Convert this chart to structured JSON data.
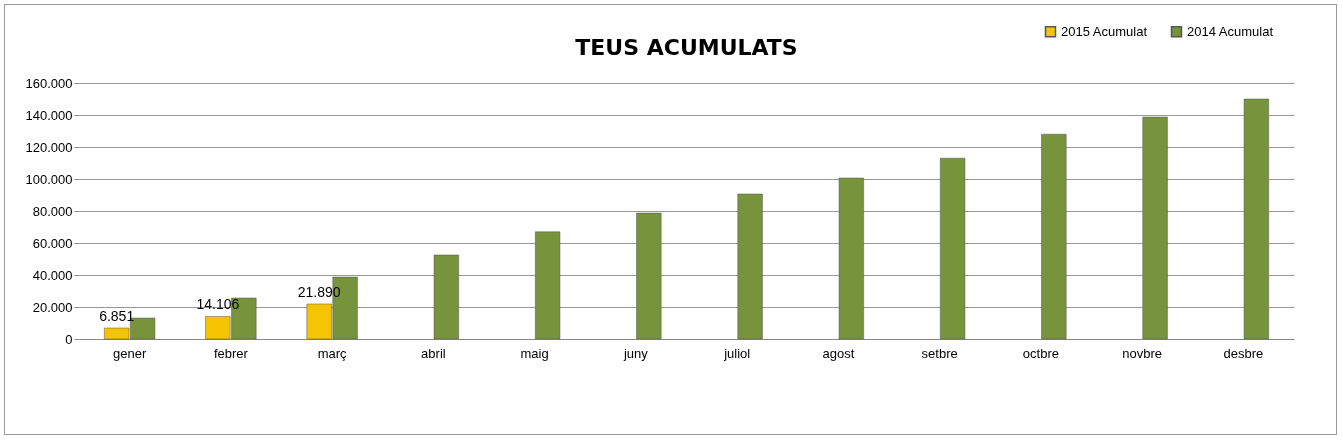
{
  "chart_data": {
    "type": "bar",
    "title": "TEUS ACUMULATS",
    "categories": [
      "gener",
      "febrer",
      "març",
      "abril",
      "maig",
      "juny",
      "juliol",
      "agost",
      "setbre",
      "octbre",
      "novbre",
      "desbre"
    ],
    "series": [
      {
        "name": "2015 Acumulat",
        "color": "#f5c400",
        "values": [
          6851,
          14106,
          21890,
          null,
          null,
          null,
          null,
          null,
          null,
          null,
          null,
          null
        ],
        "value_labels": [
          "6.851",
          "14.106",
          "21.890",
          null,
          null,
          null,
          null,
          null,
          null,
          null,
          null,
          null
        ]
      },
      {
        "name": "2014 Acumulat",
        "color": "#77933c",
        "values": [
          13100,
          25600,
          38700,
          52500,
          67000,
          78700,
          90600,
          100600,
          113000,
          128000,
          138700,
          150000
        ]
      }
    ],
    "ylim": [
      0,
      160000
    ],
    "yticks": [
      {
        "value": 0,
        "label": "0"
      },
      {
        "value": 20000,
        "label": "20.000"
      },
      {
        "value": 40000,
        "label": "40.000"
      },
      {
        "value": 60000,
        "label": "60.000"
      },
      {
        "value": 80000,
        "label": "80.000"
      },
      {
        "value": 100000,
        "label": "100.000"
      },
      {
        "value": 120000,
        "label": "120.000"
      },
      {
        "value": 140000,
        "label": "140.000"
      },
      {
        "value": 160000,
        "label": "160.000"
      }
    ],
    "grid": "y",
    "legend": "top right"
  }
}
